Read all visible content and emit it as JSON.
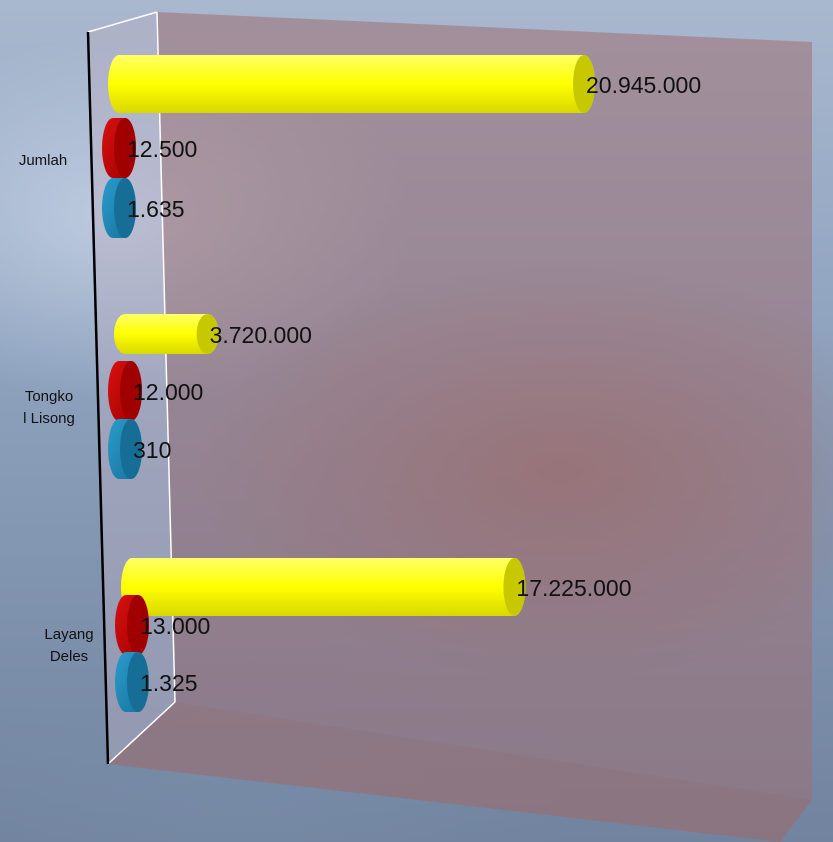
{
  "colors": {
    "yellow": "#ffff00",
    "red": "#c00000",
    "blue": "#1f86b4",
    "back_wall": "#9e6f72",
    "side_wall": "#b4a7b8"
  },
  "chart_data": {
    "type": "bar",
    "orientation": "horizontal",
    "style": "3d-cylinder",
    "categories": [
      "Jumlah",
      "Tongkol Lisong",
      "Layang Deles"
    ],
    "category_labels": [
      [
        "Jumlah"
      ],
      [
        "Tongko",
        "l Lisong"
      ],
      [
        "Layang",
        "Deles"
      ]
    ],
    "series": [
      {
        "values": [
          20945000,
          3720000,
          17225000
        ],
        "labels": [
          "20.945.000",
          "3.720.000",
          "17.225.000"
        ],
        "color": "#ffff00"
      },
      {
        "values": [
          12500,
          12000,
          13000
        ],
        "labels": [
          "12.500",
          "12.000",
          "13.000"
        ],
        "color": "#c00000"
      },
      {
        "values": [
          1635,
          310,
          1325
        ],
        "labels": [
          "1.635",
          "310",
          "1.325"
        ],
        "color": "#1f86b4"
      }
    ],
    "xlim": [
      0,
      25000000
    ],
    "legend": "none",
    "grid": false
  }
}
